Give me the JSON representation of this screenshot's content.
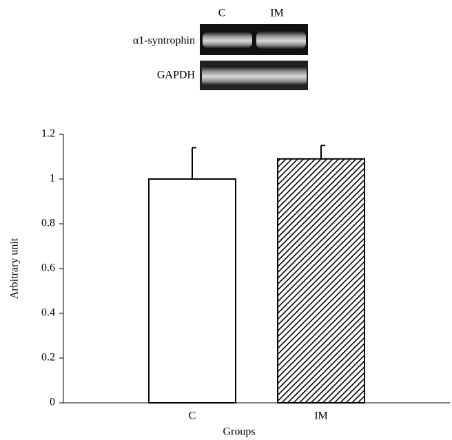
{
  "blot": {
    "lanes": [
      "C",
      "IM"
    ],
    "rows": [
      "α1-syntrophin",
      "GAPDH"
    ]
  },
  "chart_data": {
    "type": "bar",
    "categories": [
      "C",
      "IM"
    ],
    "values": [
      1.0,
      1.09
    ],
    "errors": [
      0.14,
      0.06
    ],
    "fills": [
      "solid",
      "hatch"
    ],
    "color": "#000000",
    "xlabel": "Groups",
    "ylabel": "Arbitrary unit",
    "ylim": [
      0,
      1.2
    ],
    "yticks": [
      0,
      0.2,
      0.4,
      0.6,
      0.8,
      1,
      1.2
    ]
  }
}
